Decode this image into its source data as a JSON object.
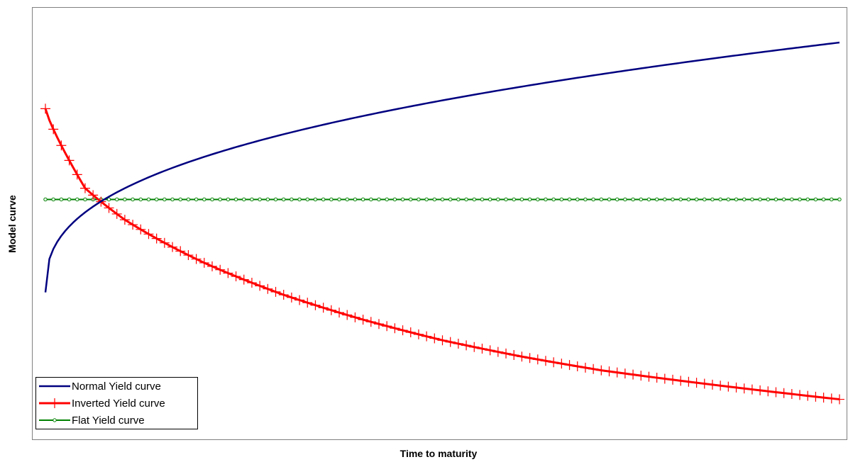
{
  "chart_data": {
    "type": "line",
    "title": "",
    "xlabel": "Time to maturity",
    "ylabel": "Model curve",
    "xlim": [
      0,
      1
    ],
    "ylim": [
      0,
      1
    ],
    "grid": false,
    "axis_ticks": false,
    "legend_position": "bottom-left",
    "series": [
      {
        "name": "Normal Yield curve",
        "color": "#000080",
        "marker": "none",
        "model": "normal",
        "x": [
          0.0,
          0.02,
          0.05,
          0.1,
          0.15,
          0.2,
          0.3,
          0.4,
          0.5,
          0.6,
          0.7,
          0.8,
          0.9,
          1.0
        ],
        "y": [
          0.34,
          0.46,
          0.545,
          0.62,
          0.665,
          0.7,
          0.752,
          0.79,
          0.82,
          0.845,
          0.867,
          0.885,
          0.902,
          0.918
        ]
      },
      {
        "name": "Inverted Yield curve",
        "color": "#ff0000",
        "marker": "plus",
        "model": "inverted",
        "x": [
          0.0,
          0.05,
          0.1,
          0.2,
          0.3,
          0.4,
          0.5,
          0.6,
          0.7,
          0.8,
          0.9,
          1.0
        ],
        "y": [
          0.765,
          0.565,
          0.51,
          0.43,
          0.36,
          0.3,
          0.245,
          0.2,
          0.16,
          0.13,
          0.1,
          0.07
        ]
      },
      {
        "name": "Flat Yield curve",
        "color": "#008000",
        "marker": "circle",
        "model": "flat",
        "x": [
          0.0,
          1.0
        ],
        "y": [
          0.555,
          0.555
        ]
      }
    ]
  }
}
